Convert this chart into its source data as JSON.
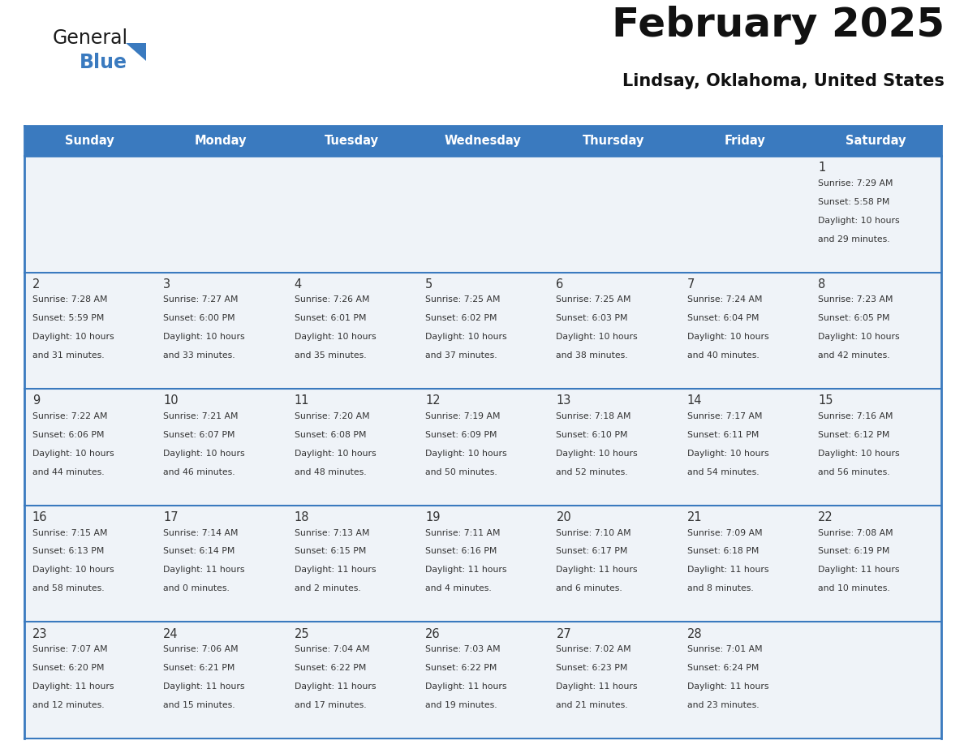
{
  "title": "February 2025",
  "subtitle": "Lindsay, Oklahoma, United States",
  "header_color": "#3a7abf",
  "header_text_color": "#ffffff",
  "days_of_week": [
    "Sunday",
    "Monday",
    "Tuesday",
    "Wednesday",
    "Thursday",
    "Friday",
    "Saturday"
  ],
  "background_color": "#ffffff",
  "cell_bg": "#eff3f8",
  "grid_line_color": "#3a7abf",
  "day_num_color": "#333333",
  "text_color": "#333333",
  "logo_text1": "General",
  "logo_text2": "Blue",
  "logo_color1": "#1a1a1a",
  "logo_color2": "#3a7abf",
  "weeks": [
    [
      {
        "day": null,
        "sunrise": null,
        "sunset": null,
        "daylight": null
      },
      {
        "day": null,
        "sunrise": null,
        "sunset": null,
        "daylight": null
      },
      {
        "day": null,
        "sunrise": null,
        "sunset": null,
        "daylight": null
      },
      {
        "day": null,
        "sunrise": null,
        "sunset": null,
        "daylight": null
      },
      {
        "day": null,
        "sunrise": null,
        "sunset": null,
        "daylight": null
      },
      {
        "day": null,
        "sunrise": null,
        "sunset": null,
        "daylight": null
      },
      {
        "day": 1,
        "sunrise": "7:29 AM",
        "sunset": "5:58 PM",
        "daylight": "10 hours and 29 minutes."
      }
    ],
    [
      {
        "day": 2,
        "sunrise": "7:28 AM",
        "sunset": "5:59 PM",
        "daylight": "10 hours and 31 minutes."
      },
      {
        "day": 3,
        "sunrise": "7:27 AM",
        "sunset": "6:00 PM",
        "daylight": "10 hours and 33 minutes."
      },
      {
        "day": 4,
        "sunrise": "7:26 AM",
        "sunset": "6:01 PM",
        "daylight": "10 hours and 35 minutes."
      },
      {
        "day": 5,
        "sunrise": "7:25 AM",
        "sunset": "6:02 PM",
        "daylight": "10 hours and 37 minutes."
      },
      {
        "day": 6,
        "sunrise": "7:25 AM",
        "sunset": "6:03 PM",
        "daylight": "10 hours and 38 minutes."
      },
      {
        "day": 7,
        "sunrise": "7:24 AM",
        "sunset": "6:04 PM",
        "daylight": "10 hours and 40 minutes."
      },
      {
        "day": 8,
        "sunrise": "7:23 AM",
        "sunset": "6:05 PM",
        "daylight": "10 hours and 42 minutes."
      }
    ],
    [
      {
        "day": 9,
        "sunrise": "7:22 AM",
        "sunset": "6:06 PM",
        "daylight": "10 hours and 44 minutes."
      },
      {
        "day": 10,
        "sunrise": "7:21 AM",
        "sunset": "6:07 PM",
        "daylight": "10 hours and 46 minutes."
      },
      {
        "day": 11,
        "sunrise": "7:20 AM",
        "sunset": "6:08 PM",
        "daylight": "10 hours and 48 minutes."
      },
      {
        "day": 12,
        "sunrise": "7:19 AM",
        "sunset": "6:09 PM",
        "daylight": "10 hours and 50 minutes."
      },
      {
        "day": 13,
        "sunrise": "7:18 AM",
        "sunset": "6:10 PM",
        "daylight": "10 hours and 52 minutes."
      },
      {
        "day": 14,
        "sunrise": "7:17 AM",
        "sunset": "6:11 PM",
        "daylight": "10 hours and 54 minutes."
      },
      {
        "day": 15,
        "sunrise": "7:16 AM",
        "sunset": "6:12 PM",
        "daylight": "10 hours and 56 minutes."
      }
    ],
    [
      {
        "day": 16,
        "sunrise": "7:15 AM",
        "sunset": "6:13 PM",
        "daylight": "10 hours and 58 minutes."
      },
      {
        "day": 17,
        "sunrise": "7:14 AM",
        "sunset": "6:14 PM",
        "daylight": "11 hours and 0 minutes."
      },
      {
        "day": 18,
        "sunrise": "7:13 AM",
        "sunset": "6:15 PM",
        "daylight": "11 hours and 2 minutes."
      },
      {
        "day": 19,
        "sunrise": "7:11 AM",
        "sunset": "6:16 PM",
        "daylight": "11 hours and 4 minutes."
      },
      {
        "day": 20,
        "sunrise": "7:10 AM",
        "sunset": "6:17 PM",
        "daylight": "11 hours and 6 minutes."
      },
      {
        "day": 21,
        "sunrise": "7:09 AM",
        "sunset": "6:18 PM",
        "daylight": "11 hours and 8 minutes."
      },
      {
        "day": 22,
        "sunrise": "7:08 AM",
        "sunset": "6:19 PM",
        "daylight": "11 hours and 10 minutes."
      }
    ],
    [
      {
        "day": 23,
        "sunrise": "7:07 AM",
        "sunset": "6:20 PM",
        "daylight": "11 hours and 12 minutes."
      },
      {
        "day": 24,
        "sunrise": "7:06 AM",
        "sunset": "6:21 PM",
        "daylight": "11 hours and 15 minutes."
      },
      {
        "day": 25,
        "sunrise": "7:04 AM",
        "sunset": "6:22 PM",
        "daylight": "11 hours and 17 minutes."
      },
      {
        "day": 26,
        "sunrise": "7:03 AM",
        "sunset": "6:22 PM",
        "daylight": "11 hours and 19 minutes."
      },
      {
        "day": 27,
        "sunrise": "7:02 AM",
        "sunset": "6:23 PM",
        "daylight": "11 hours and 21 minutes."
      },
      {
        "day": 28,
        "sunrise": "7:01 AM",
        "sunset": "6:24 PM",
        "daylight": "11 hours and 23 minutes."
      },
      {
        "day": null,
        "sunrise": null,
        "sunset": null,
        "daylight": null
      }
    ]
  ]
}
